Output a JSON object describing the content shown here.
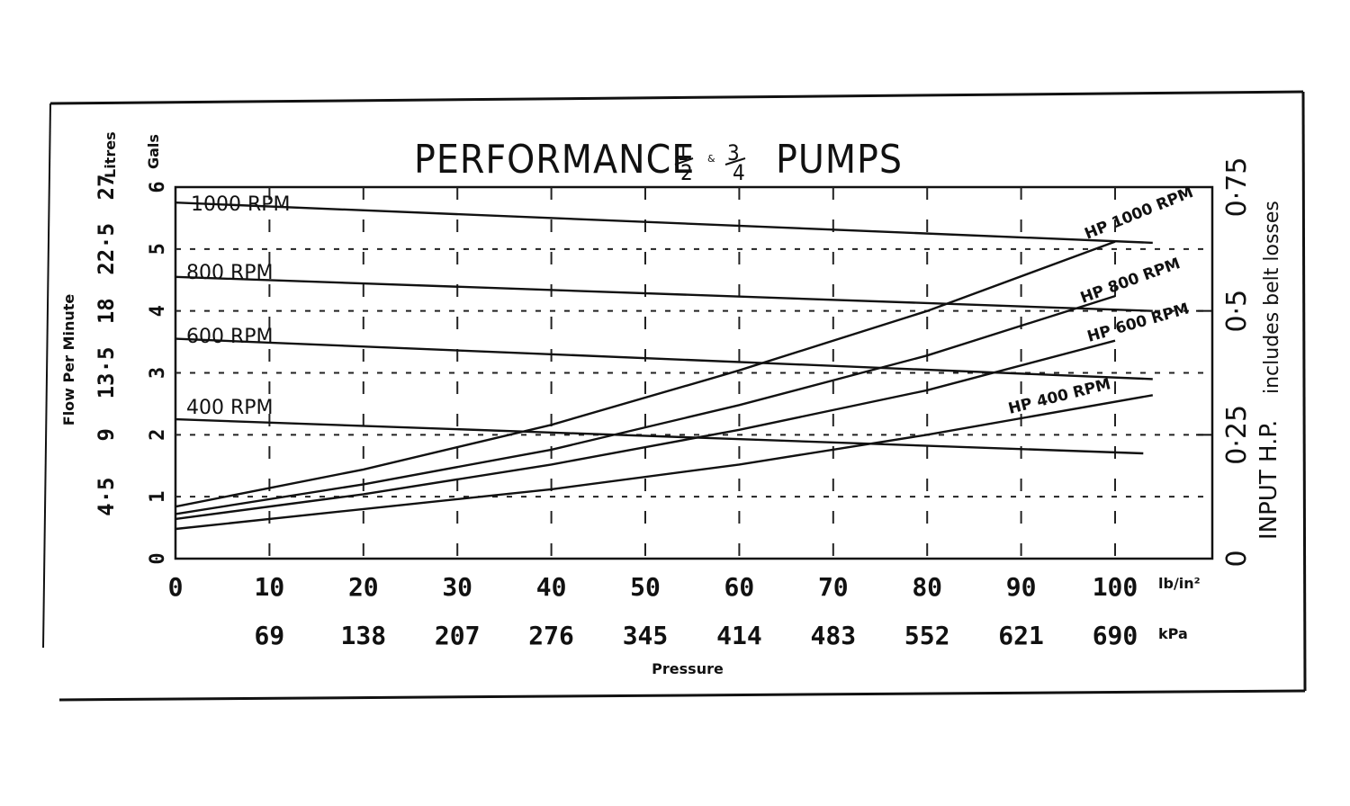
{
  "chart_data": {
    "type": "line",
    "title_prefix": "PERFORMANCE",
    "title_frac1_num": "1",
    "title_frac1_den": "2",
    "title_amp": "&",
    "title_frac2_num": "3",
    "title_frac2_den": "4",
    "title_suffix": "PUMPS",
    "x_ticks_psi": [
      0,
      10,
      20,
      30,
      40,
      50,
      60,
      70,
      80,
      90,
      100
    ],
    "x_tick_labels_psi": [
      "0",
      "10",
      "20",
      "30",
      "40",
      "50",
      "60",
      "70",
      "80",
      "90",
      "100"
    ],
    "x_unit_psi": "lb/in²",
    "x_tick_labels_kpa": [
      "69",
      "138",
      "207",
      "276",
      "345",
      "414",
      "483",
      "552",
      "621",
      "690"
    ],
    "x_unit_kpa": "kPa",
    "xlabel": "Pressure",
    "xlim": [
      0,
      105
    ],
    "y_left_label": "Flow Per Minute",
    "y_gals_unit": "Gals",
    "y_gals_ticks": [
      "0",
      "1",
      "2",
      "3",
      "4",
      "5",
      "6"
    ],
    "y_litres_unit": "Litres",
    "y_litres_ticks": [
      "4·5",
      "9",
      "13·5",
      "18",
      "22·5",
      "27"
    ],
    "ylim_gals": [
      0,
      6
    ],
    "y_right_label": "INPUT H.P.",
    "y_right_sublabel": "includes belt losses",
    "y_right_ticks": [
      "0",
      "0·25",
      "0·5",
      "0·75"
    ],
    "ylim_hp": [
      0,
      0.75
    ],
    "series": [
      {
        "name": "1000 RPM",
        "axis": "flow",
        "x": [
          0,
          104
        ],
        "y": [
          5.75,
          5.1
        ]
      },
      {
        "name": "800 RPM",
        "axis": "flow",
        "x": [
          0,
          104
        ],
        "y": [
          4.55,
          4.0
        ]
      },
      {
        "name": "600 RPM",
        "axis": "flow",
        "x": [
          0,
          104
        ],
        "y": [
          3.55,
          2.9
        ]
      },
      {
        "name": "400 RPM",
        "axis": "flow",
        "x": [
          0,
          103
        ],
        "y": [
          2.25,
          1.7
        ]
      },
      {
        "name": "HP 1000 RPM",
        "axis": "hp",
        "x": [
          0,
          20,
          40,
          60,
          80,
          100
        ],
        "y": [
          0.105,
          0.18,
          0.27,
          0.38,
          0.5,
          0.64
        ]
      },
      {
        "name": "HP 800 RPM",
        "axis": "hp",
        "x": [
          0,
          20,
          40,
          60,
          80,
          100
        ],
        "y": [
          0.09,
          0.15,
          0.22,
          0.31,
          0.41,
          0.53
        ]
      },
      {
        "name": "HP 600 RPM",
        "axis": "hp",
        "x": [
          0,
          20,
          40,
          60,
          80,
          100
        ],
        "y": [
          0.08,
          0.13,
          0.19,
          0.26,
          0.34,
          0.44
        ]
      },
      {
        "name": "HP 400 RPM",
        "axis": "hp",
        "x": [
          0,
          20,
          40,
          60,
          80,
          104
        ],
        "y": [
          0.06,
          0.1,
          0.14,
          0.19,
          0.25,
          0.33
        ]
      }
    ],
    "grid": "dashed",
    "legend": "inline labels"
  }
}
